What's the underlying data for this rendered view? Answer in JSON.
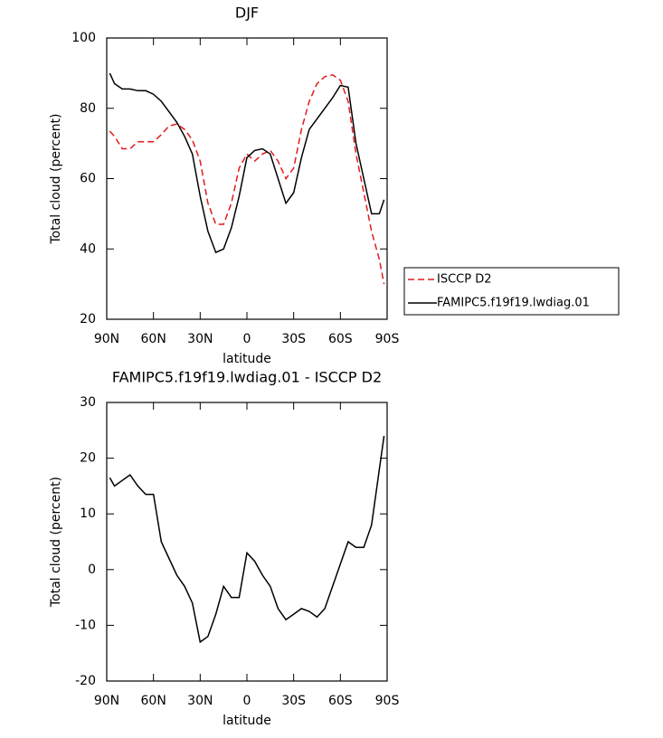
{
  "chart_data": [
    {
      "type": "line",
      "title": "DJF",
      "x_label": "latitude",
      "y_label": "Total cloud (percent)",
      "x": [
        88,
        85,
        80,
        75,
        70,
        65,
        60,
        55,
        50,
        45,
        40,
        35,
        30,
        25,
        20,
        15,
        10,
        5,
        0,
        -5,
        -10,
        -15,
        -20,
        -25,
        -30,
        -35,
        -40,
        -45,
        -50,
        -55,
        -60,
        -65,
        -70,
        -75,
        -80,
        -85,
        -88
      ],
      "xlim": [
        90,
        -90
      ],
      "xticks": [
        {
          "value": 90,
          "label": "90N"
        },
        {
          "value": 60,
          "label": "60N"
        },
        {
          "value": 30,
          "label": "30N"
        },
        0,
        {
          "value": -30,
          "label": "30S"
        },
        {
          "value": -60,
          "label": "60S"
        },
        {
          "value": -90,
          "label": "90S"
        }
      ],
      "ylim": [
        20,
        100
      ],
      "yticks": [
        20,
        40,
        60,
        80,
        100
      ],
      "legend": "right",
      "series": [
        {
          "name": "ISCCP D2",
          "color": "#e31a1c",
          "dash": "dashed",
          "values": [
            73.5,
            72,
            68.5,
            68.5,
            70.5,
            70.5,
            70.5,
            72.5,
            75,
            75.5,
            74,
            71,
            65,
            53,
            47,
            47,
            53,
            63,
            67,
            65,
            67,
            68,
            65,
            60,
            63,
            74,
            82,
            87,
            89,
            89.5,
            88,
            82,
            67,
            56,
            45,
            37,
            30
          ]
        },
        {
          "name": "FAMIPC5.f19f19.lwdiag.01",
          "color": "#000000",
          "values": [
            90,
            87,
            85.5,
            85.5,
            85,
            85,
            84,
            82,
            79,
            76,
            72,
            67,
            55,
            45,
            39,
            40,
            46,
            55,
            66,
            68,
            68.5,
            67,
            60,
            53,
            56,
            66,
            74,
            77,
            80,
            83,
            86.5,
            86,
            70,
            60,
            50,
            50,
            54
          ]
        }
      ]
    },
    {
      "type": "line",
      "title": "FAMIPC5.f19f19.lwdiag.01 - ISCCP D2",
      "x_label": "latitude",
      "y_label": "Total cloud (percent)",
      "x": [
        88,
        85,
        80,
        75,
        70,
        65,
        60,
        55,
        50,
        45,
        40,
        35,
        30,
        25,
        20,
        15,
        10,
        5,
        0,
        -5,
        -10,
        -15,
        -20,
        -25,
        -30,
        -35,
        -40,
        -45,
        -50,
        -55,
        -60,
        -65,
        -70,
        -75,
        -80,
        -85,
        -88
      ],
      "xlim": [
        90,
        -90
      ],
      "xticks": [
        {
          "value": 90,
          "label": "90N"
        },
        {
          "value": 60,
          "label": "60N"
        },
        {
          "value": 30,
          "label": "30N"
        },
        0,
        {
          "value": -30,
          "label": "30S"
        },
        {
          "value": -60,
          "label": "60S"
        },
        {
          "value": -90,
          "label": "90S"
        }
      ],
      "ylim": [
        -20,
        30
      ],
      "yticks": [
        -20,
        -10,
        0,
        10,
        20,
        30
      ],
      "series": [
        {
          "color": "#000000",
          "values": [
            16.5,
            15,
            16,
            17,
            15,
            13.5,
            13.5,
            5,
            2,
            -1,
            -3,
            -6,
            -13,
            -12,
            -8,
            -3,
            -5,
            -5,
            3,
            1.5,
            -1,
            -3,
            -7,
            -9,
            -8,
            -7,
            -7.5,
            -8.5,
            -7,
            -3,
            1,
            5,
            4,
            4,
            8,
            18,
            24
          ]
        }
      ]
    }
  ]
}
